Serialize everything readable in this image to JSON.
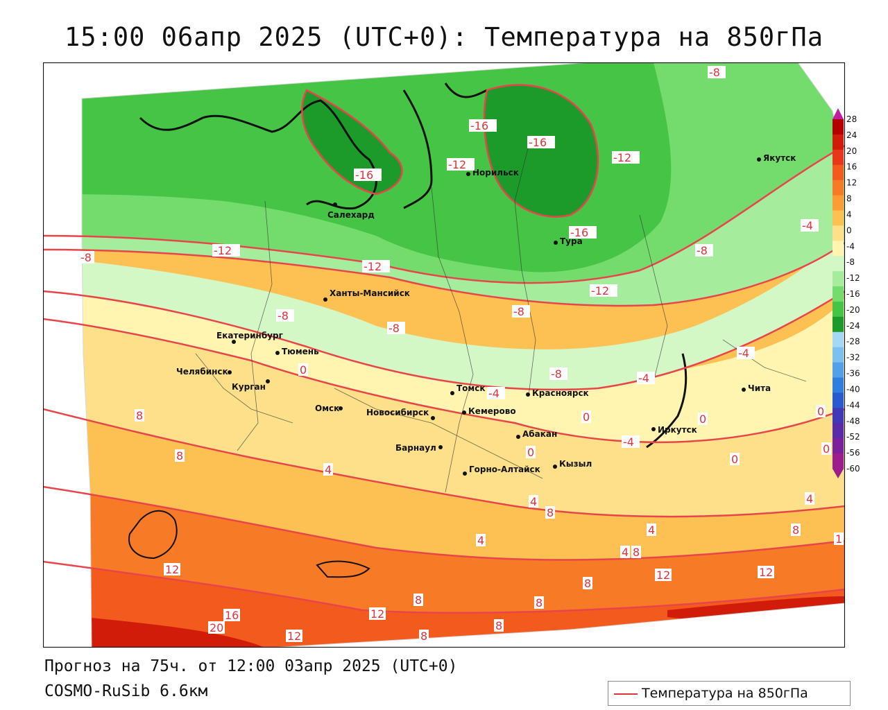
{
  "title": "15:00 06апр 2025 (UTC+0): Температура на 850гПа",
  "footer": {
    "forecast": "Прогноз на 75ч. от 12:00 03апр 2025 (UTC+0)",
    "model": "COSMO-RuSib 6.6км"
  },
  "legend": {
    "label": "Температура на 850гПа",
    "line_color": "#e0343a"
  },
  "colorbar": {
    "ticks": [
      "28",
      "24",
      "20",
      "16",
      "12",
      "8",
      "4",
      "0",
      "-4",
      "-8",
      "-12",
      "-16",
      "-20",
      "-24",
      "-28",
      "-32",
      "-36",
      "-40",
      "-44",
      "-48",
      "-52",
      "-56",
      "-60"
    ],
    "colors": [
      "#b40000",
      "#d21c0a",
      "#e8361a",
      "#f25a1e",
      "#f77a26",
      "#fb9d32",
      "#fdc053",
      "#fde089",
      "#fff4b0",
      "#d4f7c6",
      "#a5ec9c",
      "#74dc6c",
      "#45c445",
      "#1c9b2a",
      "#a5d8f5",
      "#7cc0f0",
      "#52a0e8",
      "#2f7fe0",
      "#2a5ad0",
      "#4038b8",
      "#5a2aa8",
      "#7a209a",
      "#9b1e8c"
    ]
  },
  "cities": [
    {
      "name": "Салехард"
    },
    {
      "name": "Норильск"
    },
    {
      "name": "Якутск"
    },
    {
      "name": "Тура"
    },
    {
      "name": "Ханты-Мансийск"
    },
    {
      "name": "Екатеринбург"
    },
    {
      "name": "Тюмень"
    },
    {
      "name": "Челябинск"
    },
    {
      "name": "Курган"
    },
    {
      "name": "Омск"
    },
    {
      "name": "Новосибирск"
    },
    {
      "name": "Томск"
    },
    {
      "name": "Красноярск"
    },
    {
      "name": "Кемерово"
    },
    {
      "name": "Барнаул"
    },
    {
      "name": "Абакан"
    },
    {
      "name": "Горно-Алтайск"
    },
    {
      "name": "Кызыл"
    },
    {
      "name": "Иркутск"
    },
    {
      "name": "Чита"
    }
  ],
  "contour_labels": [
    {
      "text": "-8"
    },
    {
      "text": "-16"
    },
    {
      "text": "-16"
    },
    {
      "text": "-12"
    },
    {
      "text": "-12"
    },
    {
      "text": "-16"
    },
    {
      "text": "-16"
    },
    {
      "text": "-12"
    },
    {
      "text": "-12"
    },
    {
      "text": "-8"
    },
    {
      "text": "-8"
    },
    {
      "text": "-4"
    },
    {
      "text": "-12"
    },
    {
      "text": "-8"
    },
    {
      "text": "-8"
    },
    {
      "text": "-8"
    },
    {
      "text": "-4"
    },
    {
      "text": "-4"
    },
    {
      "text": "-4"
    },
    {
      "text": "-4"
    },
    {
      "text": "0"
    },
    {
      "text": "0"
    },
    {
      "text": "0"
    },
    {
      "text": "0"
    },
    {
      "text": "0"
    },
    {
      "text": "0"
    },
    {
      "text": "4"
    },
    {
      "text": "4"
    },
    {
      "text": "4"
    },
    {
      "text": "4"
    },
    {
      "text": "4"
    },
    {
      "text": "4"
    },
    {
      "text": "8"
    },
    {
      "text": "8"
    },
    {
      "text": "8"
    },
    {
      "text": "8"
    },
    {
      "text": "8"
    },
    {
      "text": "8"
    },
    {
      "text": "8"
    },
    {
      "text": "8"
    },
    {
      "text": "8"
    },
    {
      "text": "12"
    },
    {
      "text": "12"
    },
    {
      "text": "12"
    },
    {
      "text": "12"
    },
    {
      "text": "12"
    },
    {
      "text": "16"
    },
    {
      "text": "20"
    },
    {
      "text": "1"
    },
    {
      "text": "8"
    },
    {
      "text": "-8"
    },
    {
      "text": "0"
    }
  ]
}
